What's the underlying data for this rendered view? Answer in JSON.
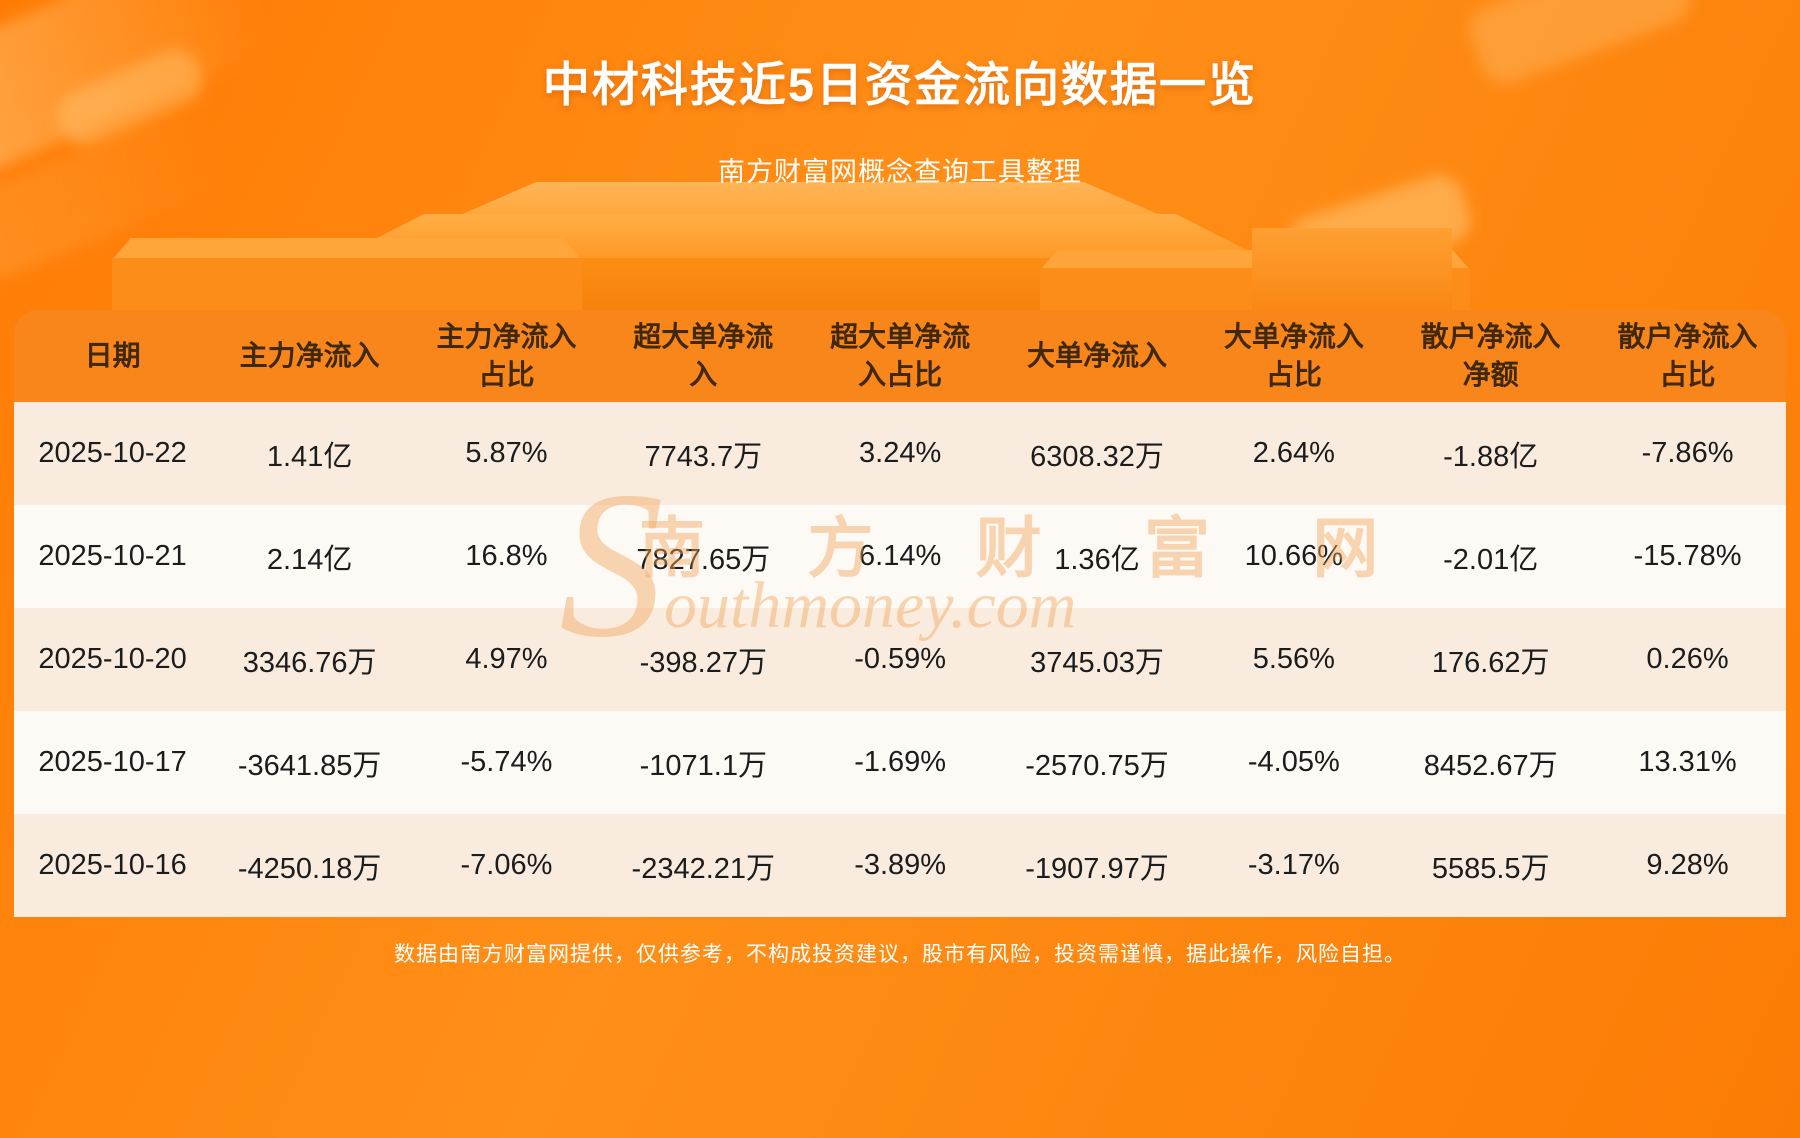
{
  "page": {
    "title": "中材科技近5日资金流向数据一览",
    "subtitle": "南方财富网概念查询工具整理",
    "footer": "数据由南方财富网提供，仅供参考，不构成投资建议，股市有风险，投资需谨慎，据此操作，风险自担。"
  },
  "watermark": {
    "initial": "S",
    "cn": "南 方 财 富 网",
    "en": "outhmoney.com"
  },
  "colors": {
    "background_orange": "#ff8310",
    "header_bg": "#f9861b",
    "header_text": "#40280a",
    "row_odd_bg": "#f9ecdf",
    "row_even_bg": "#fdf9f4",
    "row_text": "#1c1c1c",
    "title_text": "#ffffff"
  },
  "chart_data": {
    "type": "table",
    "title": "中材科技近5日资金流向数据一览",
    "columns": [
      "日期",
      "主力净流入",
      "主力净流入占比",
      "超大单净流入",
      "超大单净流入占比",
      "大单净流入",
      "大单净流入占比",
      "散户净流入净额",
      "散户净流入占比"
    ],
    "rows": [
      [
        "2025-10-22",
        "1.41亿",
        "5.87%",
        "7743.7万",
        "3.24%",
        "6308.32万",
        "2.64%",
        "-1.88亿",
        "-7.86%"
      ],
      [
        "2025-10-21",
        "2.14亿",
        "16.8%",
        "7827.65万",
        "6.14%",
        "1.36亿",
        "10.66%",
        "-2.01亿",
        "-15.78%"
      ],
      [
        "2025-10-20",
        "3346.76万",
        "4.97%",
        "-398.27万",
        "-0.59%",
        "3745.03万",
        "5.56%",
        "176.62万",
        "0.26%"
      ],
      [
        "2025-10-17",
        "-3641.85万",
        "-5.74%",
        "-1071.1万",
        "-1.69%",
        "-2570.75万",
        "-4.05%",
        "8452.67万",
        "13.31%"
      ],
      [
        "2025-10-16",
        "-4250.18万",
        "-7.06%",
        "-2342.21万",
        "-3.89%",
        "-1907.97万",
        "-3.17%",
        "5585.5万",
        "9.28%"
      ]
    ]
  }
}
